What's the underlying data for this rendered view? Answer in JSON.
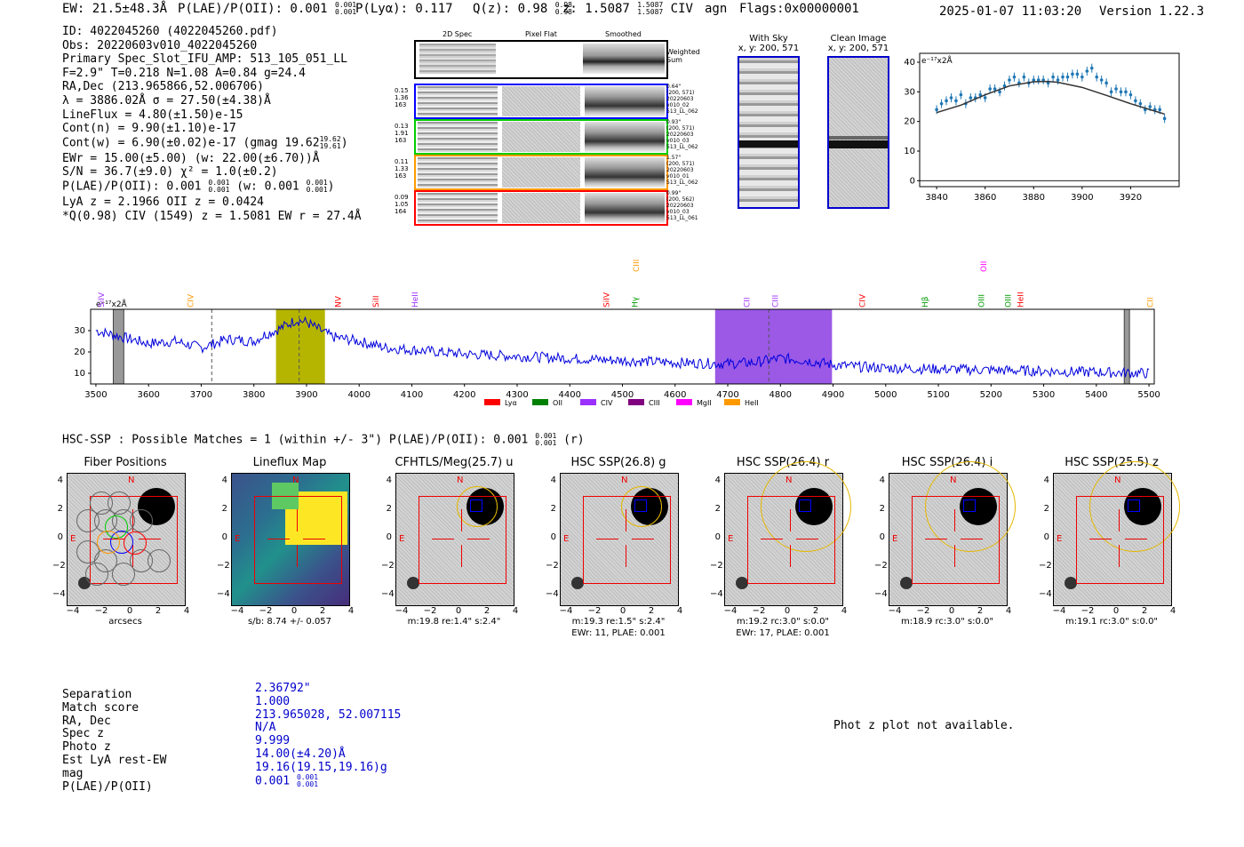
{
  "header": {
    "ew": "EW: 21.5±48.3Å",
    "plae_label": "P(LAE)/P(OII): 0.001",
    "plae_hi": "0.001",
    "plae_lo": "0.001",
    "plya": "P(Lyα): 0.117",
    "qz": "Q(z): 0.98",
    "qz_hi": "0.98",
    "qz_lo": "0.98",
    "z": "z: 1.5087",
    "z_hi": "1.5087",
    "z_lo": "1.5087",
    "z_line": "CIV",
    "agn": "agn",
    "flags": "Flags:0x00000001",
    "timestamp": "2025-01-07 11:03:20",
    "version": "Version 1.22.3"
  },
  "info": {
    "id": "ID: 4022045260 (4022045260.pdf)",
    "obs": "Obs: 20220603v010_4022045260",
    "primary": "Primary Spec_Slot_IFU_AMP: 513_105_051_LL",
    "fwhm": "F=2.9\"  T=0.218  N=1.08  A=0.84  g=24.4",
    "radec": "RA,Dec (213.965866,52.006706)",
    "lambda": "λ = 3886.02Å  σ = 27.50(±4.38)Å",
    "lineflux": "LineFlux = 4.80(±1.50)e-15",
    "contn": "Cont(n) = 9.90(±1.10)e-17",
    "contw": "Cont(w) = 6.90(±0.02)e-17 (gmag 19.62",
    "contw_hi": "19.62",
    "contw_lo": "19.61",
    "contw_end": ")",
    "ewr": "EWr = 15.00(±5.00) (w: 22.00(±6.70))Å",
    "sn": "S/N = 36.7(±9.0)  χ² = 1.0(±0.2)",
    "plae": "P(LAE)/P(OII): 0.001",
    "plae_hi": "0.001",
    "plae_lo": "0.001",
    "plae_w": "(w: 0.001",
    "plae_w_hi": "0.001",
    "plae_w_lo": "0.001",
    "plae_w_end": ")",
    "lya": "LyA z = 2.1966  OII z = 0.0424",
    "civ": "*Q(0.98) CIV (1549) z = 1.5081  EW r = 27.4Å"
  },
  "cutouts": {
    "col_2d": "2D Spec",
    "col_flat": "Pixel Flat",
    "col_smooth": "Smoothed",
    "weighted_sum": "Weighted Sum",
    "fibers": [
      {
        "l1": "0.15",
        "l2": "1.36",
        "l3": "163",
        "r1": "0.64\"",
        "r2": "(200, 571)",
        "r3": "20220603",
        "r4": "v010_02",
        "r5": "513_LL_062",
        "color": "#0000ff"
      },
      {
        "l1": "0.13",
        "l2": "1.91",
        "l3": "163",
        "r1": "0.93\"",
        "r2": "(200, 571)",
        "r3": "20220603",
        "r4": "v010_03",
        "r5": "513_LL_062",
        "color": "#00cc00"
      },
      {
        "l1": "0.11",
        "l2": "1.33",
        "l3": "163",
        "r1": "1.57\"",
        "r2": "(200, 571)",
        "r3": "20220603",
        "r4": "v010_01",
        "r5": "513_LL_062",
        "color": "#ff9900"
      },
      {
        "l1": "0.09",
        "l2": "1.05",
        "l3": "164",
        "r1": "0.99\"",
        "r2": "(200, 562)",
        "r3": "20220603",
        "r4": "v010_03",
        "r5": "513_LL_061",
        "color": "#ff0000"
      }
    ]
  },
  "withsky": {
    "title": "With Sky",
    "coords": "x, y: 200, 571"
  },
  "clean": {
    "title": "Clean Image",
    "coords": "x, y: 200, 571"
  },
  "fit_plot": {
    "units": "e⁻¹⁷x2Å",
    "xticks": [
      "3840",
      "3860",
      "3880",
      "3900",
      "3920"
    ],
    "yticks": [
      "40",
      "30",
      "20",
      "10",
      "0"
    ]
  },
  "chart_data": [
    {
      "type": "scatter",
      "title": "",
      "xlabel": "",
      "ylabel": "e-17 x2Å",
      "xlim": [
        3833,
        3940
      ],
      "ylim": [
        -2,
        43
      ],
      "x": [
        3840,
        3842,
        3844,
        3846,
        3848,
        3850,
        3852,
        3854,
        3856,
        3858,
        3860,
        3862,
        3864,
        3866,
        3868,
        3870,
        3872,
        3874,
        3876,
        3878,
        3880,
        3882,
        3884,
        3886,
        3888,
        3890,
        3892,
        3894,
        3896,
        3898,
        3900,
        3902,
        3904,
        3906,
        3908,
        3910,
        3912,
        3914,
        3916,
        3918,
        3920,
        3922,
        3924,
        3926,
        3928,
        3930,
        3932,
        3934
      ],
      "values": [
        24,
        26,
        27,
        28,
        27,
        29,
        26,
        28,
        28,
        29,
        28,
        31,
        31,
        30,
        32,
        34,
        35,
        33,
        35,
        33,
        34,
        34,
        34,
        33,
        35,
        34,
        35,
        35,
        36,
        36,
        35,
        37,
        38,
        35,
        34,
        33,
        30,
        31,
        30,
        30,
        29,
        27,
        26,
        24,
        25,
        24,
        24,
        21
      ],
      "fit_x": [
        3840,
        3850,
        3860,
        3870,
        3880,
        3886,
        3890,
        3900,
        3910,
        3920,
        3930,
        3934
      ],
      "fit_y": [
        23,
        25.5,
        29,
        32,
        33.4,
        33.5,
        33.2,
        31.5,
        28.8,
        26,
        23.5,
        22.5
      ]
    },
    {
      "type": "line",
      "title": "",
      "xlabel": "",
      "ylabel": "e-17 x2Å",
      "xlim": [
        3490,
        5510
      ],
      "ylim": [
        5,
        40
      ],
      "xticks": [
        "3500",
        "3600",
        "3700",
        "3800",
        "3900",
        "4000",
        "4100",
        "4200",
        "4300",
        "4400",
        "4500",
        "4600",
        "4700",
        "4800",
        "4900",
        "5000",
        "5100",
        "5200",
        "5300",
        "5400",
        "5500"
      ],
      "yticks": [
        "30",
        "20",
        "10"
      ],
      "units": "e⁻¹⁷x2Å",
      "x": [
        3500,
        3550,
        3600,
        3650,
        3700,
        3750,
        3800,
        3820,
        3850,
        3880,
        3900,
        3920,
        3950,
        4000,
        4050,
        4100,
        4150,
        4200,
        4300,
        4400,
        4500,
        4600,
        4700,
        4750,
        4800,
        4850,
        4900,
        4950,
        5000,
        5100,
        5200,
        5300,
        5400,
        5500
      ],
      "values": [
        30,
        27,
        24,
        25,
        22,
        26,
        25,
        28,
        31,
        35,
        34,
        31,
        27,
        25,
        22,
        21,
        20,
        19,
        18,
        17,
        16,
        15,
        14.5,
        15,
        17,
        16,
        14,
        13,
        12.5,
        12,
        11.5,
        11,
        10.5,
        10
      ],
      "highlights": [
        {
          "x0": 3842,
          "x1": 3935,
          "color": "#b5b500"
        },
        {
          "x0": 4676,
          "x1": 4898,
          "color": "#9b59e6"
        }
      ],
      "gray_bands": [
        [
          3533,
          3553
        ],
        [
          5453,
          5463
        ]
      ],
      "dashed_lines": [
        3720,
        3886,
        4778
      ],
      "line_markers": [
        {
          "label": "SiIV",
          "x": 3510,
          "color": "#9b30ff",
          "row": "low"
        },
        {
          "label": "CIV",
          "x": 3680,
          "color": "#ff9900",
          "row": "low"
        },
        {
          "label": "NV",
          "x": 3960,
          "color": "#ff0000",
          "row": "low"
        },
        {
          "label": "SiII",
          "x": 4032,
          "color": "#ff0000",
          "row": "low"
        },
        {
          "label": "HeII",
          "x": 4106,
          "color": "#9b30ff",
          "row": "low"
        },
        {
          "label": "SiIV",
          "x": 4470,
          "color": "#ff0000",
          "row": "low"
        },
        {
          "label": "CIII",
          "x": 4526,
          "color": "#ff9900",
          "row": "high"
        },
        {
          "label": "Hγ",
          "x": 4524,
          "color": "#009900",
          "row": "low"
        },
        {
          "label": "CII",
          "x": 4736,
          "color": "#9b30ff",
          "row": "low"
        },
        {
          "label": "CIII",
          "x": 4790,
          "color": "#9b30ff",
          "row": "low"
        },
        {
          "label": "CIV",
          "x": 4956,
          "color": "#ff0000",
          "row": "low"
        },
        {
          "label": "Hβ",
          "x": 5075,
          "color": "#009900",
          "row": "low"
        },
        {
          "label": "OII",
          "x": 5186,
          "color": "#ff00ff",
          "row": "high"
        },
        {
          "label": "OIII",
          "x": 5182,
          "color": "#009900",
          "row": "low"
        },
        {
          "label": "OIII",
          "x": 5232,
          "color": "#009900",
          "row": "low"
        },
        {
          "label": "HeII",
          "x": 5256,
          "color": "#ff0000",
          "row": "low"
        },
        {
          "label": "CII",
          "x": 5502,
          "color": "#ff9900",
          "row": "low"
        }
      ],
      "legend": [
        {
          "label": "Lyα",
          "color": "#ff0000"
        },
        {
          "label": "OII",
          "color": "#008000"
        },
        {
          "label": "CIV",
          "color": "#9b30ff"
        },
        {
          "label": "CIII",
          "color": "#800080"
        },
        {
          "label": "MgII",
          "color": "#ff00ff"
        },
        {
          "label": "HeII",
          "color": "#ff9900"
        }
      ]
    }
  ],
  "hsc": {
    "title": "HSC-SSP : Possible Matches = 1 (within +/- 3\")  P(LAE)/P(OII): 0.001",
    "plae_hi": "0.001",
    "plae_lo": "0.001",
    "band": "(r)"
  },
  "stamps": [
    {
      "title": "Fiber Positions",
      "cap1": "arcsecs",
      "cap2": ""
    },
    {
      "title": "Lineflux Map",
      "cap1": "s/b: 8.74 +/- 0.057",
      "cap2": ""
    },
    {
      "title": "CFHTLS/Meg(25.7) u",
      "cap1": "m:19.8  re:1.4\"  s:2.4\"",
      "cap2": ""
    },
    {
      "title": "HSC SSP(26.8) g",
      "cap1": "m:19.3  re:1.5\"  s:2.4\"",
      "cap2": "EWr: 11, PLAE: 0.001"
    },
    {
      "title": "HSC SSP(26.4) r",
      "cap1": "m:19.2 rc:3.0\"  s:0.0\"",
      "cap2": "EWr: 17, PLAE: 0.001"
    },
    {
      "title": "HSC SSP(26.4) i",
      "cap1": "m:18.9 rc:3.0\"  s:0.0\"",
      "cap2": ""
    },
    {
      "title": "HSC SSP(25.5) z",
      "cap1": "m:19.1 rc:3.0\"  s:0.0\"",
      "cap2": ""
    }
  ],
  "stamp_axes": {
    "yticks": [
      "4",
      "2",
      "0",
      "−2",
      "−4"
    ],
    "xticks": [
      "−4",
      "−2",
      "0",
      "2",
      "4"
    ],
    "north": "N",
    "east": "E"
  },
  "match": {
    "labels": [
      "Separation",
      "Match score",
      "RA, Dec",
      "Spec z",
      "Photo z",
      "Est LyA rest-EW",
      "mag",
      "P(LAE)/P(OII)"
    ],
    "values": [
      "2.36792\"",
      "1.000",
      "213.965028, 52.007115",
      "N/A",
      "9.999",
      "14.00(±4.20)Å",
      "19.16(19.15,19.16)g",
      "0.001"
    ],
    "plae_hi": "0.001",
    "plae_lo": "0.001"
  },
  "photz": "Phot z plot not available."
}
